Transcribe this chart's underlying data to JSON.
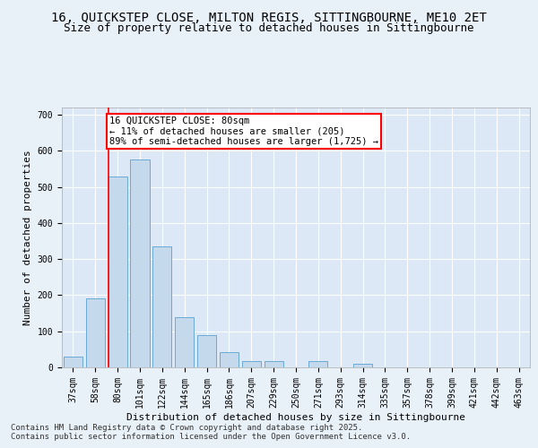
{
  "title_line1": "16, QUICKSTEP CLOSE, MILTON REGIS, SITTINGBOURNE, ME10 2ET",
  "title_line2": "Size of property relative to detached houses in Sittingbourne",
  "xlabel": "Distribution of detached houses by size in Sittingbourne",
  "ylabel": "Number of detached properties",
  "categories": [
    "37sqm",
    "58sqm",
    "80sqm",
    "101sqm",
    "122sqm",
    "144sqm",
    "165sqm",
    "186sqm",
    "207sqm",
    "229sqm",
    "250sqm",
    "271sqm",
    "293sqm",
    "314sqm",
    "335sqm",
    "357sqm",
    "378sqm",
    "399sqm",
    "421sqm",
    "442sqm",
    "463sqm"
  ],
  "values": [
    30,
    190,
    530,
    575,
    335,
    140,
    90,
    42,
    18,
    18,
    0,
    18,
    0,
    10,
    0,
    0,
    0,
    0,
    0,
    0,
    0
  ],
  "bar_color": "#c5d9ed",
  "bar_edge_color": "#6aaad4",
  "red_line_index": 2,
  "annotation_text": "16 QUICKSTEP CLOSE: 80sqm\n← 11% of detached houses are smaller (205)\n89% of semi-detached houses are larger (1,725) →",
  "annotation_box_color": "white",
  "annotation_box_edge": "red",
  "ylim": [
    0,
    720
  ],
  "yticks": [
    0,
    100,
    200,
    300,
    400,
    500,
    600,
    700
  ],
  "bg_color": "#e8f0f8",
  "plot_bg_color": "#dce8f5",
  "footer_line1": "Contains HM Land Registry data © Crown copyright and database right 2025.",
  "footer_line2": "Contains public sector information licensed under the Open Government Licence v3.0.",
  "title_fontsize": 10,
  "subtitle_fontsize": 9,
  "axis_label_fontsize": 8,
  "tick_fontsize": 7,
  "annotation_fontsize": 7.5,
  "footer_fontsize": 6.5
}
